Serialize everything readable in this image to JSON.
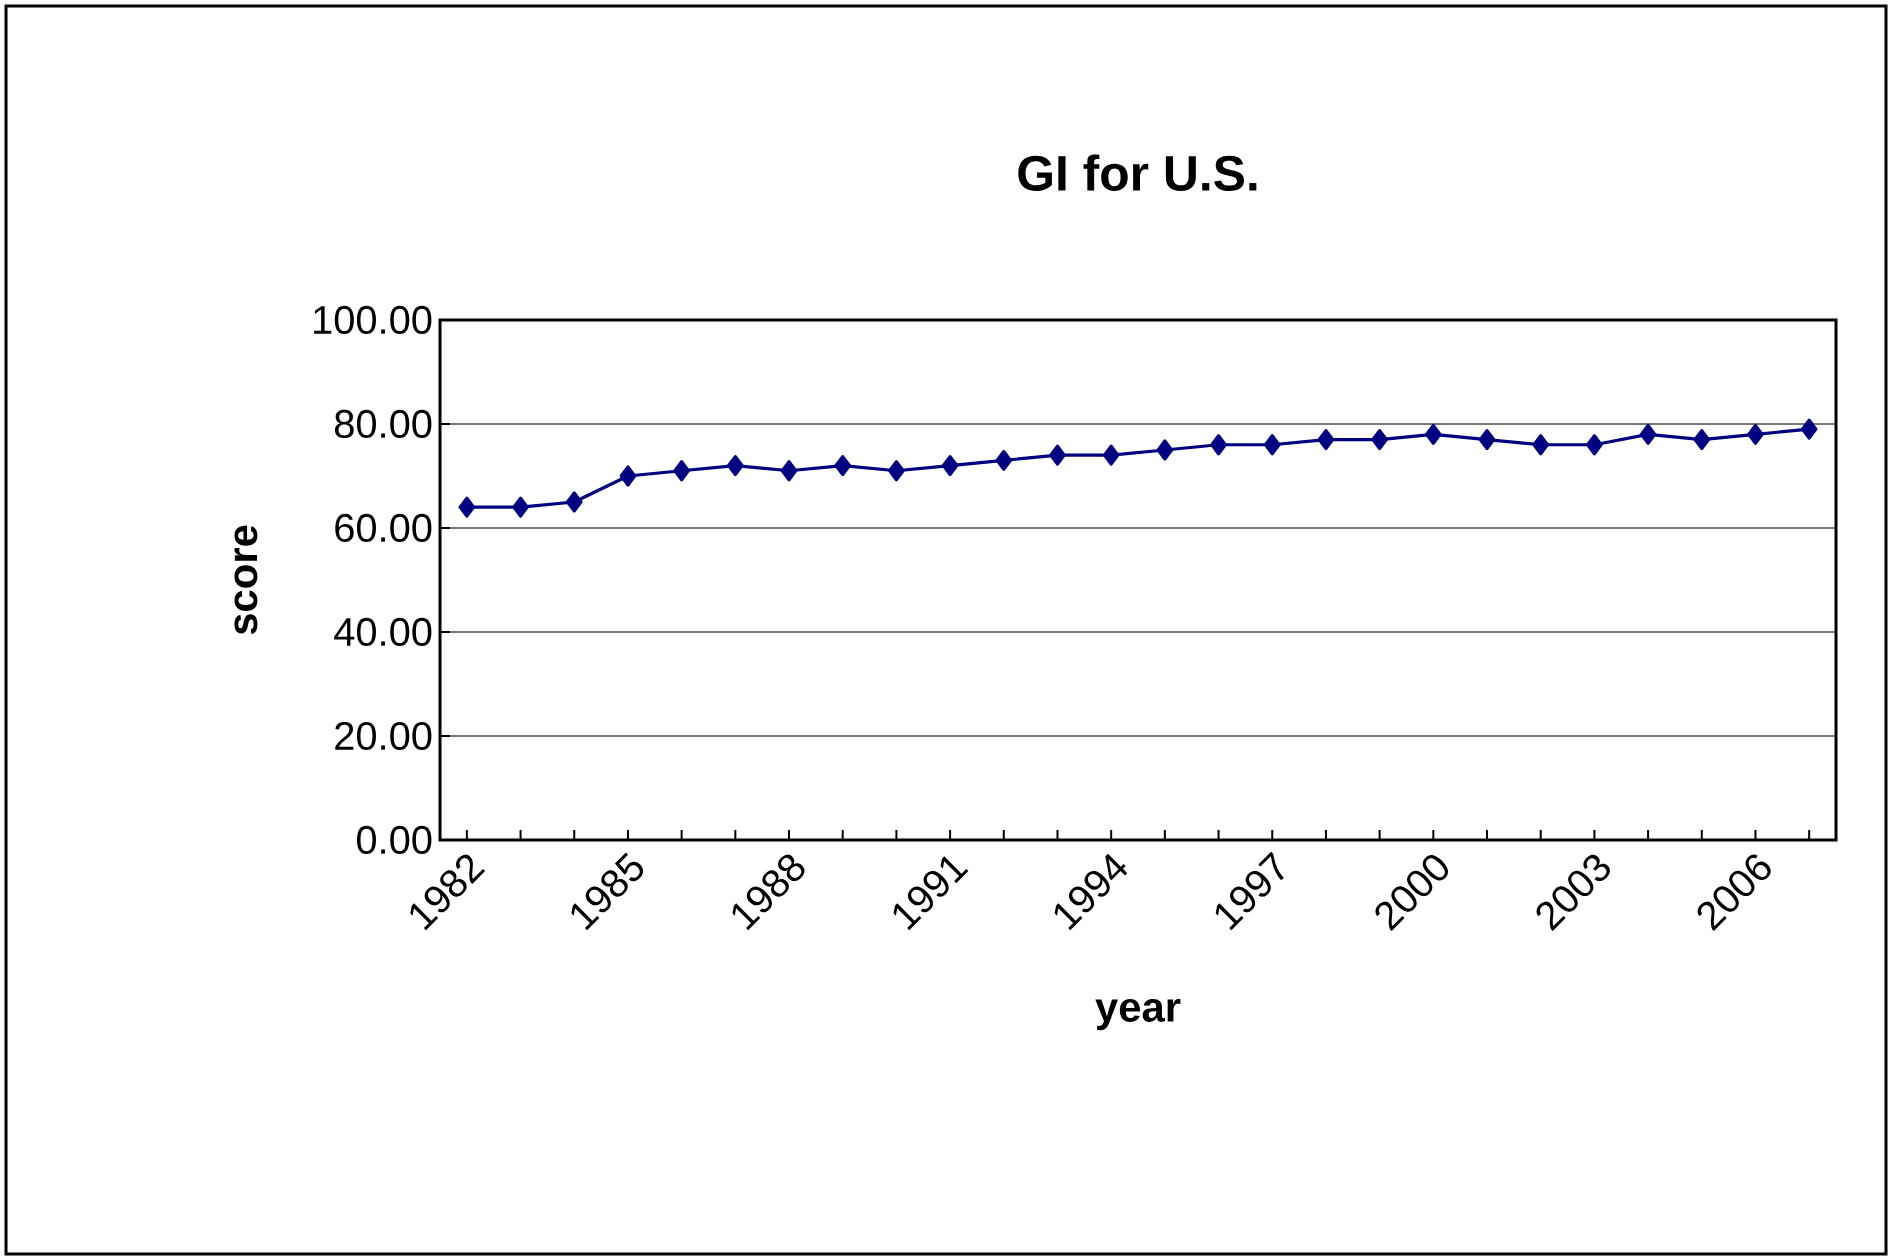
{
  "chart_data": {
    "type": "line",
    "title": "GI for U.S.",
    "xlabel": "year",
    "ylabel": "score",
    "categories": [
      "1982",
      null,
      null,
      "1985",
      null,
      null,
      "1988",
      null,
      null,
      "1991",
      null,
      null,
      "1994",
      null,
      null,
      "1997",
      null,
      null,
      "2000",
      null,
      null,
      "2003",
      null,
      null,
      "2006",
      null
    ],
    "series": [
      {
        "color": "#000080",
        "values": [
          64,
          64,
          65,
          70,
          71,
          72,
          71,
          72,
          71,
          72,
          73,
          74,
          74,
          75,
          76,
          76,
          77,
          77,
          78,
          77,
          76,
          76,
          78,
          77,
          78,
          79
        ]
      }
    ],
    "ylim": [
      0,
      100
    ],
    "yticks": [
      {
        "value": 0,
        "label": "0.00"
      },
      {
        "value": 20,
        "label": "20.00"
      },
      {
        "value": 40,
        "label": "40.00"
      },
      {
        "value": 60,
        "label": "60.00"
      },
      {
        "value": 80,
        "label": "80.00"
      },
      {
        "value": 100,
        "label": "100.00"
      }
    ],
    "grid": "y",
    "marker": "diamond",
    "line_style": "solid"
  }
}
